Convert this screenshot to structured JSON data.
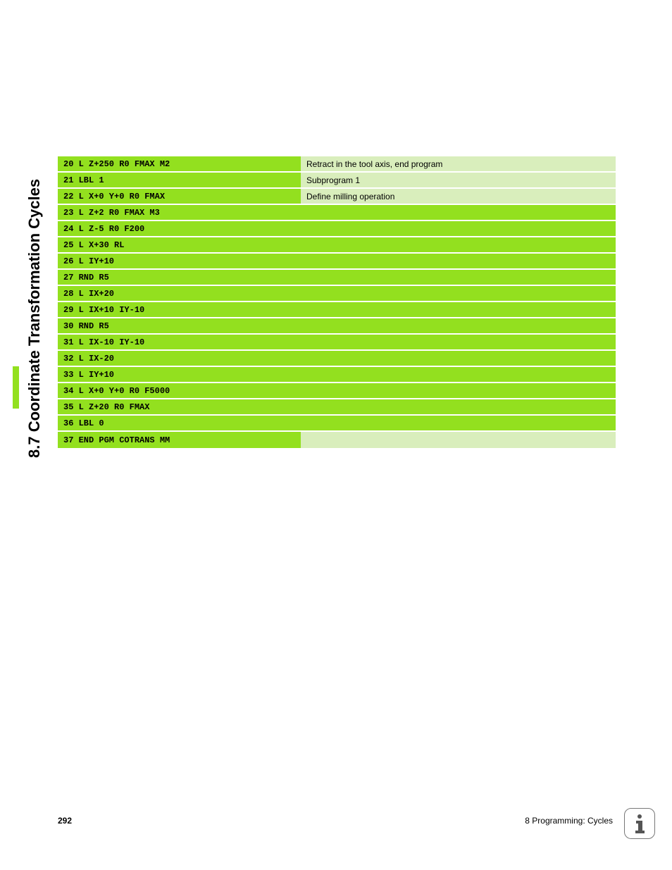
{
  "section_title": "8.7 Coordinate Transformation Cycles",
  "page_number": "292",
  "footer_label": "8 Programming: Cycles",
  "colors": {
    "accent": "#93e01f",
    "pale": "#d9eebc",
    "row_gap": "#ffffff",
    "text": "#000000",
    "icon_border": "#777777"
  },
  "table": {
    "rows": [
      {
        "code": "20 L Z+250 R0 FMAX M2",
        "desc": "Retract in the tool axis, end program",
        "desc_bg": "pale"
      },
      {
        "code": "21 LBL 1",
        "desc": "Subprogram 1",
        "desc_bg": "pale"
      },
      {
        "code": "22 L X+0 Y+0 R0 FMAX",
        "desc": "Define milling operation",
        "desc_bg": "pale"
      },
      {
        "code": "23 L Z+2 R0 FMAX M3",
        "desc": "",
        "desc_bg": "filled"
      },
      {
        "code": "24 L Z-5 R0 F200",
        "desc": "",
        "desc_bg": "filled"
      },
      {
        "code": "25 L X+30 RL",
        "desc": "",
        "desc_bg": "filled"
      },
      {
        "code": "26 L IY+10",
        "desc": "",
        "desc_bg": "filled"
      },
      {
        "code": "27 RND R5",
        "desc": "",
        "desc_bg": "filled"
      },
      {
        "code": "28 L IX+20",
        "desc": "",
        "desc_bg": "filled"
      },
      {
        "code": "29 L IX+10 IY-10",
        "desc": "",
        "desc_bg": "filled"
      },
      {
        "code": "30 RND R5",
        "desc": "",
        "desc_bg": "filled"
      },
      {
        "code": "31 L IX-10 IY-10",
        "desc": "",
        "desc_bg": "filled"
      },
      {
        "code": "32 L IX-20",
        "desc": "",
        "desc_bg": "filled"
      },
      {
        "code": "33 L IY+10",
        "desc": "",
        "desc_bg": "filled"
      },
      {
        "code": "34 L X+0 Y+0 R0 F5000",
        "desc": "",
        "desc_bg": "filled"
      },
      {
        "code": "35 L Z+20 R0 FMAX",
        "desc": "",
        "desc_bg": "filled"
      },
      {
        "code": "36 LBL 0",
        "desc": "",
        "desc_bg": "filled"
      },
      {
        "code": "37 END PGM COTRANS MM",
        "desc": "",
        "desc_bg": "pale"
      }
    ]
  }
}
